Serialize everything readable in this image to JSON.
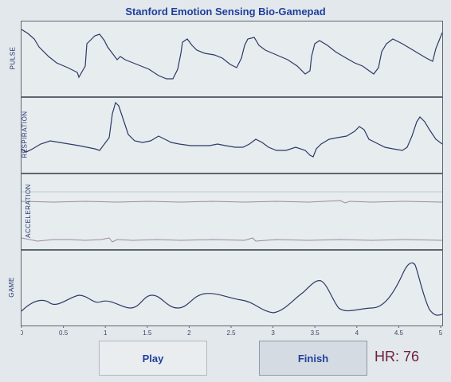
{
  "window": {
    "title": "Stanford Emotion Sensing Bio-Gamepad"
  },
  "panels": [
    {
      "label": "PULSE"
    },
    {
      "label": "RESPIRATION"
    },
    {
      "label": "ACCELERATION"
    },
    {
      "label": "GAME"
    }
  ],
  "x_axis": {
    "ticks": [
      "0",
      "0.5",
      "1",
      "1.5",
      "2",
      "2.5",
      "3",
      "3.5",
      "4",
      "4.5",
      "5"
    ]
  },
  "buttons": {
    "play_label": "Play",
    "finish_label": "Finish"
  },
  "heart_rate": {
    "label": "HR: 76"
  },
  "colors": {
    "trace": "#2d3a66",
    "accel_trace": "#9a8aa0",
    "title": "#1f3f9a",
    "hr": "#6c1f3e"
  }
}
